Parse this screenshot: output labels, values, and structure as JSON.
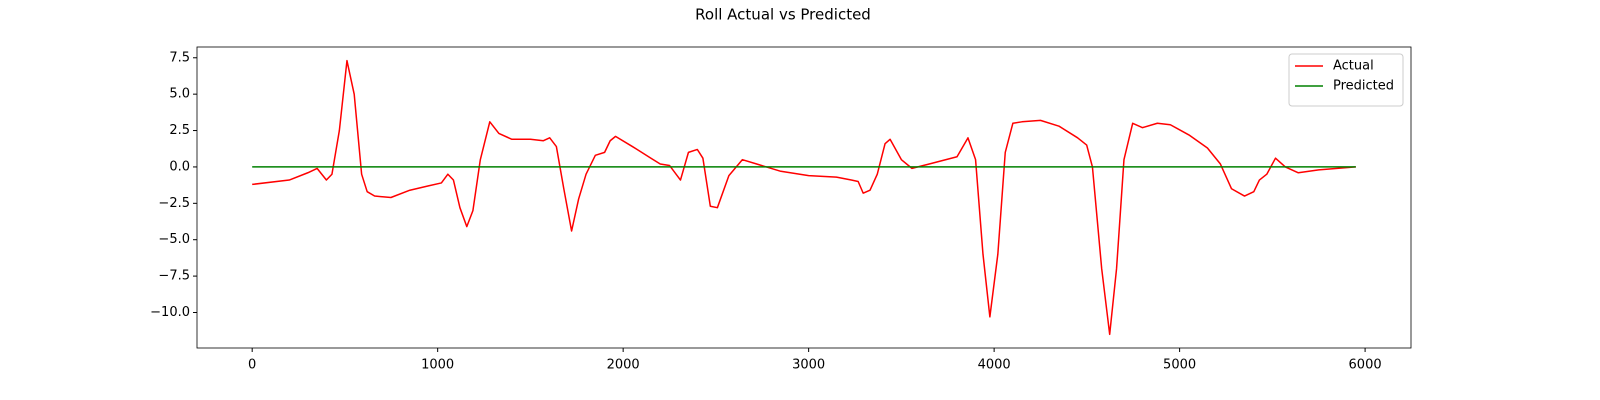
{
  "chart_data": {
    "type": "line",
    "title": "Roll Actual vs Predicted",
    "x": [
      0,
      200,
      300,
      350,
      400,
      430,
      470,
      511,
      550,
      590,
      620,
      660,
      748,
      850,
      950,
      1020,
      1055,
      1085,
      1120,
      1157,
      1190,
      1230,
      1281,
      1330,
      1400,
      1500,
      1570,
      1604,
      1640,
      1680,
      1722,
      1760,
      1800,
      1850,
      1900,
      1930,
      1959,
      2050,
      2150,
      2200,
      2250,
      2309,
      2352,
      2400,
      2430,
      2470,
      2508,
      2570,
      2643,
      2720,
      2850,
      3000,
      3150,
      3230,
      3267,
      3294,
      3331,
      3370,
      3412,
      3439,
      3500,
      3557,
      3650,
      3800,
      3859,
      3900,
      3940,
      3977,
      4020,
      4060,
      4101,
      4150,
      4250,
      4350,
      4450,
      4499,
      4530,
      4580,
      4623,
      4660,
      4700,
      4747,
      4800,
      4880,
      4950,
      5050,
      5150,
      5220,
      5280,
      5350,
      5400,
      5430,
      5470,
      5517,
      5570,
      5640,
      5750,
      5950
    ],
    "series": [
      {
        "name": "Actual",
        "color": "#ff0000",
        "values": [
          -1.2,
          -0.9,
          -0.4,
          -0.1,
          -0.9,
          -0.5,
          2.5,
          7.3,
          5.0,
          -0.5,
          -1.7,
          -2.0,
          -2.1,
          -1.6,
          -1.3,
          -1.1,
          -0.5,
          -0.9,
          -2.8,
          -4.1,
          -3.0,
          0.5,
          3.1,
          2.3,
          1.9,
          1.9,
          1.8,
          2.0,
          1.4,
          -1.5,
          -4.4,
          -2.2,
          -0.5,
          0.8,
          1.0,
          1.8,
          2.1,
          1.4,
          0.6,
          0.2,
          0.1,
          -0.9,
          1.0,
          1.2,
          0.6,
          -2.7,
          -2.8,
          -0.6,
          0.5,
          0.2,
          -0.3,
          -0.6,
          -0.7,
          -0.9,
          -1.0,
          -1.8,
          -1.6,
          -0.5,
          1.6,
          1.9,
          0.5,
          -0.1,
          0.2,
          0.7,
          2.0,
          0.5,
          -6.0,
          -10.3,
          -6.0,
          1.0,
          3.0,
          3.1,
          3.2,
          2.8,
          2.0,
          1.5,
          0.0,
          -7.0,
          -11.5,
          -7.0,
          0.5,
          3.0,
          2.7,
          3.0,
          2.9,
          2.2,
          1.3,
          0.2,
          -1.5,
          -2.0,
          -1.7,
          -0.9,
          -0.5,
          0.6,
          0.0,
          -0.4,
          -0.2,
          0.0
        ]
      },
      {
        "name": "Predicted",
        "color": "#008000",
        "values": [
          0,
          0,
          0,
          0,
          0,
          0,
          0,
          0,
          0,
          0,
          0,
          0,
          0,
          0,
          0,
          0,
          0,
          0,
          0,
          0,
          0,
          0,
          0,
          0,
          0,
          0,
          0,
          0,
          0,
          0,
          0,
          0,
          0,
          0,
          0,
          0,
          0,
          0,
          0,
          0,
          0,
          0,
          0,
          0,
          0,
          0,
          0,
          0,
          0,
          0,
          0,
          0,
          0,
          0,
          0,
          0,
          0,
          0,
          0,
          0,
          0,
          0,
          0,
          0,
          0,
          0,
          0,
          0,
          0,
          0,
          0,
          0,
          0,
          0,
          0,
          0,
          0,
          0,
          0,
          0,
          0,
          0,
          0,
          0,
          0,
          0,
          0,
          0,
          0,
          0,
          0,
          0,
          0,
          0,
          0,
          0,
          0,
          0
        ]
      }
    ],
    "xlim": [
      -297.5,
      6247.5
    ],
    "ylim": [
      -12.44,
      8.24
    ],
    "xticks": [
      0,
      1000,
      2000,
      3000,
      4000,
      5000,
      6000
    ],
    "yticks": [
      {
        "value": -10,
        "label": "−10.0"
      },
      {
        "value": -7.5,
        "label": "−7.5"
      },
      {
        "value": -5,
        "label": "−5.0"
      },
      {
        "value": -2.5,
        "label": "−2.5"
      },
      {
        "value": 0,
        "label": "0.0"
      },
      2.5,
      {
        "value": 5,
        "label": "5.0"
      },
      7.5
    ],
    "legend": "upper right"
  }
}
